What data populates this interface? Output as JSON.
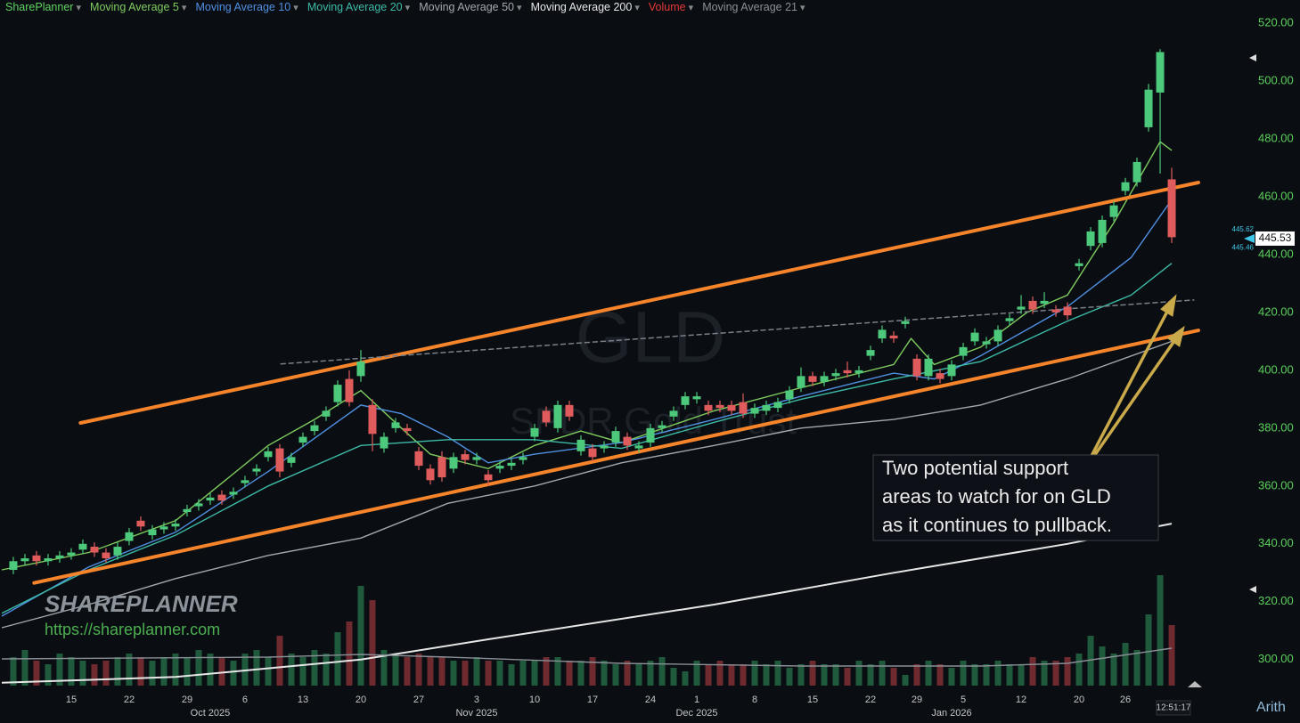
{
  "chart_data": {
    "type": "candlestick",
    "title": "GLD",
    "subtitle": "SPDR Gold Trust",
    "source_label": "SharePlanner",
    "source_color": "#5fd35f",
    "xlim": [
      -1.15,
      106.15
    ],
    "ylim": [
      291,
      528
    ],
    "grid": false,
    "yticks": [
      {
        "value": 300,
        "label": "300.00"
      },
      {
        "value": 320,
        "label": "320.00"
      },
      {
        "value": 340,
        "label": "340.00"
      },
      {
        "value": 360,
        "label": "360.00"
      },
      {
        "value": 380,
        "label": "380.00"
      },
      {
        "value": 400,
        "label": "400.00"
      },
      {
        "value": 420,
        "label": "420.00"
      },
      {
        "value": 440,
        "label": "440.00"
      },
      {
        "value": 460,
        "label": "460.00"
      },
      {
        "value": 480,
        "label": "480.00"
      },
      {
        "value": 500,
        "label": "500.00"
      },
      {
        "value": 520,
        "label": "520.00"
      }
    ],
    "xticks": [
      {
        "value": 5,
        "label": "15"
      },
      {
        "value": 10,
        "label": "22"
      },
      {
        "value": 15,
        "label": "29"
      },
      {
        "value": 20,
        "label": "6"
      },
      {
        "value": 25,
        "label": "13"
      },
      {
        "value": 30,
        "label": "20"
      },
      {
        "value": 35,
        "label": "27"
      },
      {
        "value": 40,
        "label": "3"
      },
      {
        "value": 45,
        "label": "10"
      },
      {
        "value": 50,
        "label": "17"
      },
      {
        "value": 55,
        "label": "24"
      },
      {
        "value": 59,
        "label": "1"
      },
      {
        "value": 64,
        "label": "8"
      },
      {
        "value": 69,
        "label": "15"
      },
      {
        "value": 74,
        "label": "22"
      },
      {
        "value": 78,
        "label": "29"
      },
      {
        "value": 82,
        "label": "5"
      },
      {
        "value": 87,
        "label": "12"
      },
      {
        "value": 92,
        "label": "20"
      },
      {
        "value": 96,
        "label": "26"
      }
    ],
    "month_ticks": [
      {
        "value": 17,
        "label": "Oct 2025"
      },
      {
        "value": 40,
        "label": "Nov 2025"
      },
      {
        "value": 59,
        "label": "Dec 2025"
      },
      {
        "value": 81,
        "label": "Jan 2026"
      }
    ],
    "up_color": "#4cc97a",
    "down_color": "#e05c5c",
    "open": [
      331,
      334,
      336,
      334,
      335,
      336,
      338,
      339,
      337,
      336,
      341,
      348,
      343,
      345,
      346,
      351,
      353,
      355,
      357,
      357,
      361,
      365,
      370,
      373,
      368,
      375,
      379,
      384,
      389,
      397,
      398,
      388,
      373,
      380,
      380,
      372,
      366,
      370,
      366,
      371,
      369,
      364,
      366,
      367,
      369,
      377,
      386,
      380,
      388,
      372,
      373,
      373,
      375,
      377,
      373,
      375,
      380,
      384,
      388,
      390,
      388,
      388,
      388,
      389,
      385,
      386,
      387,
      390,
      394,
      398,
      396,
      398,
      400,
      399,
      405,
      411,
      412,
      416,
      404,
      398,
      399,
      398,
      405,
      410,
      409,
      410,
      417,
      421,
      424,
      423,
      421,
      422,
      436,
      443,
      444,
      453,
      462,
      465,
      484,
      496,
      466
    ],
    "high": [
      335.5,
      336.5,
      337.5,
      336.5,
      337.5,
      338.5,
      341.5,
      340.5,
      338.5,
      340.5,
      345.5,
      349.5,
      346.5,
      347.5,
      348.5,
      353.5,
      355.5,
      357.5,
      358.5,
      359.5,
      363.5,
      367.5,
      373.5,
      374.5,
      371.5,
      378.5,
      382.5,
      387.5,
      396.5,
      400,
      407,
      390,
      378.5,
      383.5,
      381.5,
      373.5,
      367.5,
      372,
      371.5,
      372.5,
      371.5,
      365.5,
      368.5,
      369.5,
      371.5,
      381.5,
      387.5,
      389.5,
      389.5,
      377.5,
      374.5,
      375.5,
      380.5,
      378.5,
      375.5,
      381.5,
      382.5,
      387.5,
      392.5,
      392.5,
      389.5,
      389.5,
      389.5,
      392,
      388.5,
      389.5,
      390.5,
      394.5,
      401,
      399.5,
      399.5,
      400.5,
      403,
      401.5,
      408.5,
      415.5,
      413.5,
      418.5,
      405.5,
      405.5,
      400.5,
      403.5,
      409.5,
      414.5,
      411.5,
      415.5,
      419.5,
      426,
      425.5,
      427,
      422.5,
      423.5,
      438.5,
      449.5,
      453.5,
      458.5,
      466.5,
      473.5,
      499,
      511,
      470
    ],
    "low": [
      329.5,
      332.5,
      332.5,
      332.5,
      333.5,
      334.5,
      336.5,
      335.5,
      333.5,
      334.5,
      339.5,
      344.5,
      341.5,
      343.5,
      344.5,
      349.5,
      351.5,
      353.5,
      353.5,
      355.5,
      359.5,
      363.5,
      368.5,
      363,
      366.5,
      373.5,
      377.5,
      382.5,
      387.5,
      387.5,
      396,
      372,
      371.5,
      378.5,
      377.5,
      365.5,
      360.5,
      361.5,
      364.5,
      367.5,
      367.5,
      360,
      364.5,
      365.5,
      367.5,
      375.5,
      380.5,
      378.5,
      382.5,
      370.5,
      368.5,
      371.5,
      373.5,
      372.5,
      371.5,
      373.5,
      378.5,
      382.5,
      386.5,
      388.5,
      384.5,
      385.5,
      384.5,
      383.5,
      383.5,
      384.5,
      385.5,
      388.5,
      392.5,
      394.5,
      394.5,
      396.5,
      397.5,
      397.5,
      403.5,
      409.5,
      409.5,
      414.5,
      396.5,
      396.5,
      395.5,
      396.5,
      403.5,
      408.5,
      407.5,
      408.5,
      415.5,
      419.5,
      419.5,
      421.5,
      418.5,
      417.5,
      434.5,
      441.5,
      442.5,
      451.5,
      460.5,
      463.5,
      482.5,
      468,
      444
    ],
    "close": [
      334,
      335,
      334,
      335,
      336,
      337,
      340,
      337,
      335,
      339,
      344,
      346,
      345,
      346,
      347,
      352,
      354,
      356,
      355,
      358,
      362,
      366,
      372,
      365,
      370,
      377,
      381,
      386,
      395,
      389,
      403,
      378,
      377,
      382,
      379,
      367,
      362,
      363,
      370,
      369,
      370,
      362,
      367,
      368,
      370,
      380,
      382,
      388,
      384,
      376,
      370,
      374,
      379,
      374,
      374,
      380,
      381,
      386,
      391,
      391,
      386,
      387,
      386,
      385,
      387,
      388,
      389,
      393,
      398,
      396,
      398,
      399,
      399,
      400,
      407,
      414,
      411,
      417,
      398,
      404,
      397,
      402,
      408,
      413,
      410,
      414,
      418,
      422,
      421,
      424,
      420,
      419,
      437,
      448,
      452,
      457,
      465,
      472,
      497,
      510,
      446
    ],
    "volume": {
      "name": "Volume",
      "color": "#e53935",
      "values": [
        8,
        10,
        7,
        6,
        9,
        8,
        7,
        6,
        7,
        8,
        9,
        8,
        7,
        8,
        9,
        8,
        10,
        9,
        8,
        7,
        9,
        10,
        8,
        14,
        9,
        8,
        10,
        9,
        15,
        18,
        28,
        24,
        10,
        9,
        8,
        9,
        8,
        8,
        7,
        7,
        8,
        7,
        7,
        6,
        7,
        7,
        8,
        8,
        7,
        7,
        8,
        7,
        6,
        7,
        6,
        7,
        8,
        5,
        4,
        7,
        6,
        7,
        6,
        6,
        7,
        6,
        7,
        5,
        6,
        7,
        6,
        6,
        5,
        7,
        6,
        7,
        5,
        3,
        6,
        7,
        6,
        5,
        7,
        6,
        6,
        7,
        6,
        6,
        8,
        7,
        7,
        8,
        9,
        14,
        11,
        9,
        12,
        10,
        20,
        31,
        17
      ]
    },
    "series": [
      {
        "name": "Moving Average 5",
        "color": "#7ecb5d",
        "x": [
          -1,
          6.5,
          14,
          22,
          26,
          30,
          33.5,
          36,
          41,
          45,
          49,
          52.5,
          60.5,
          68,
          76,
          77.5,
          79.5,
          83.5,
          87.5,
          91,
          95,
          99,
          100
        ],
        "values": [
          331,
          337,
          348,
          374,
          383,
          393,
          380,
          371,
          366,
          374,
          379,
          375,
          386,
          394,
          402,
          411,
          402,
          408,
          420,
          426,
          451,
          479,
          476
        ]
      },
      {
        "name": "Moving Average 10",
        "color": "#4f8fe0",
        "x": [
          -1,
          6.5,
          14,
          22,
          30,
          33.5,
          37.5,
          41,
          45,
          52.5,
          60.5,
          68,
          76,
          79.5,
          83.5,
          91,
          96.5,
          100
        ],
        "values": [
          315,
          332,
          344,
          365,
          388,
          385,
          377,
          368,
          371,
          375,
          383,
          391,
          399,
          397,
          405,
          422,
          439,
          459
        ]
      },
      {
        "name": "Moving Average 20",
        "color": "#3cbaa5",
        "x": [
          -1,
          6.5,
          14,
          22,
          30,
          37.5,
          45,
          52.5,
          60.5,
          68,
          76,
          83.5,
          91,
          96.5,
          100
        ],
        "values": [
          316,
          331,
          343,
          360,
          374,
          376,
          376,
          373,
          382,
          390,
          397,
          403,
          417,
          426,
          437
        ]
      },
      {
        "name": "Moving Average 50",
        "color": "#a3a8ae",
        "x": [
          -1,
          6.5,
          14,
          22,
          30,
          37.5,
          45,
          52.5,
          60.5,
          68,
          76,
          83.5,
          91,
          100
        ],
        "values": [
          311,
          319,
          328,
          336,
          342,
          354,
          360,
          368,
          374,
          380,
          383,
          388,
          397,
          410
        ]
      },
      {
        "name": "Moving Average 200",
        "color": "#e6e6e6",
        "x": [
          -1,
          14,
          30,
          41,
          60.5,
          76,
          91,
          100
        ],
        "values": [
          292,
          294,
          300,
          307,
          319,
          330,
          340,
          347
        ]
      },
      {
        "name": "Moving Average 21",
        "color": "#8a8f96",
        "axis": "volume",
        "x": [
          -1,
          22,
          30,
          37.5,
          52.5,
          68,
          83.5,
          91,
          100
        ],
        "values": [
          7.5,
          8,
          8.75,
          8,
          6.25,
          5.5,
          5.5,
          6.25,
          10.5
        ]
      }
    ],
    "trendlines": [
      {
        "color": "#f5842a",
        "dashed": false,
        "x": [
          5.8,
          102.3
        ],
        "values": [
          381.8,
          464.9
        ]
      },
      {
        "color": "#f5842a",
        "dashed": false,
        "x": [
          1.8,
          102.3
        ],
        "values": [
          326.5,
          413.8
        ]
      },
      {
        "color": "#7a8089",
        "dashed": true,
        "x": [
          23.1,
          101.9
        ],
        "values": [
          402.2,
          424.3
        ]
      }
    ],
    "last_price": 445.53,
    "price_tags": [
      445.62,
      445.46
    ],
    "annotation": [
      "Two potential support",
      "areas to watch for on GLD",
      "as it continues to pullback."
    ]
  },
  "logo": {
    "brand": "SHAREPLANNER",
    "url": "https://shareplanner.com"
  },
  "footer": {
    "time": "12:51:17",
    "scale": "Arith"
  }
}
